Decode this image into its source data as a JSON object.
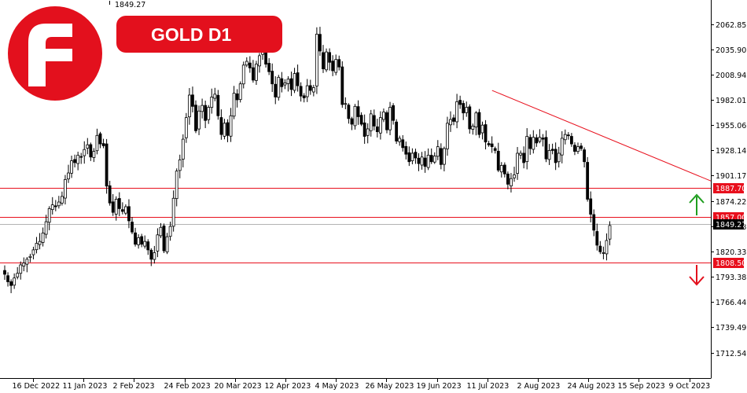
{
  "header": {
    "price_readout": "1849.27",
    "symbol_label": "GOLD D1"
  },
  "colors": {
    "brand_red": "#e3101d",
    "resistance_line": "#e8101d",
    "trendline": "#e8101d",
    "current_price_line": "#b3b3b3",
    "up_arrow": "#1f9e1f",
    "down_arrow": "#e3101d",
    "candle": "#000000",
    "price_tag_bg": "#000000"
  },
  "icons": {
    "logo": "brand-f-logo-icon",
    "up": "arrow-up-icon",
    "down": "arrow-down-icon"
  },
  "chart_data": {
    "type": "candlestick",
    "instrument": "GOLD",
    "timeframe": "D1",
    "ylim": [
      1690,
      2082
    ],
    "y_ticks": [
      2062.85,
      2035.9,
      2008.94,
      1982.01,
      1955.06,
      1928.14,
      1901.17,
      1874.22,
      1847.28,
      1820.33,
      1793.38,
      1766.44,
      1739.49,
      1712.54
    ],
    "y_tick_labels": [
      "2062.85",
      "2035.90",
      "2008.94",
      "1982.01",
      "1955.06",
      "1928.14",
      "1901.17",
      "1874.22",
      "1847.28",
      "1820.33",
      "1793.38",
      "1766.44",
      "1739.49",
      "1712.54"
    ],
    "x_labels": [
      "16 Dec 2022",
      "11 Jan 2023",
      "2 Feb 2023",
      "24 Feb 2023",
      "20 Mar 2023",
      "12 Apr 2023",
      "4 May 2023",
      "26 May 2023",
      "19 Jun 2023",
      "11 Jul 2023",
      "2 Aug 2023",
      "24 Aug 2023",
      "15 Sep 2023",
      "9 Oct 2023"
    ],
    "current_price": 1849.27,
    "current_price_label": "1849.27",
    "levels": [
      {
        "value": 1887.7,
        "label": "1887.70"
      },
      {
        "value": 1857.0,
        "label": "1857.00"
      },
      {
        "value": 1808.5,
        "label": "1808.50"
      }
    ],
    "trendline": {
      "from": {
        "date": "11 Jul 2023",
        "value": 1992
      },
      "to": {
        "date": "9 Oct 2023",
        "value": 1905
      }
    },
    "closes": [
      1796,
      1788,
      1784,
      1792,
      1797,
      1806,
      1808,
      1812,
      1815,
      1822,
      1829,
      1831,
      1840,
      1852,
      1866,
      1870,
      1868,
      1873,
      1879,
      1897,
      1904,
      1917,
      1915,
      1923,
      1921,
      1929,
      1934,
      1921,
      1927,
      1944,
      1935,
      1933,
      1890,
      1872,
      1862,
      1876,
      1866,
      1863,
      1868,
      1853,
      1841,
      1828,
      1835,
      1828,
      1831,
      1822,
      1812,
      1819,
      1838,
      1846,
      1821,
      1836,
      1847,
      1877,
      1906,
      1918,
      1940,
      1963,
      1987,
      1975,
      1949,
      1970,
      1976,
      1960,
      1974,
      1985,
      1988,
      1965,
      1945,
      1957,
      1944,
      1965,
      1989,
      1982,
      1999,
      2019,
      2023,
      2016,
      2003,
      2020,
      2029,
      2039,
      2020,
      2012,
      1999,
      1985,
      2006,
      1996,
      2000,
      2004,
      1993,
      2010,
      1997,
      1986,
      1984,
      1997,
      1992,
      1995,
      2052,
      2034,
      2015,
      2033,
      2022,
      2013,
      2025,
      2017,
      1977,
      1978,
      1962,
      1956,
      1975,
      1964,
      1956,
      1943,
      1951,
      1967,
      1954,
      1948,
      1963,
      1969,
      1950,
      1974,
      1960,
      1938,
      1941,
      1931,
      1924,
      1916,
      1925,
      1920,
      1914,
      1921,
      1911,
      1923,
      1916,
      1922,
      1932,
      1913,
      1930,
      1957,
      1961,
      1959,
      1980,
      1977,
      1968,
      1974,
      1951,
      1954,
      1968,
      1945,
      1955,
      1937,
      1934,
      1932,
      1928,
      1907,
      1912,
      1903,
      1892,
      1898,
      1902,
      1925,
      1925,
      1915,
      1943,
      1930,
      1942,
      1936,
      1942,
      1940,
      1919,
      1928,
      1928,
      1915,
      1925,
      1941,
      1945,
      1944,
      1935,
      1927,
      1932,
      1930,
      1916,
      1876,
      1860,
      1843,
      1827,
      1820,
      1819,
      1832,
      1848
    ]
  }
}
